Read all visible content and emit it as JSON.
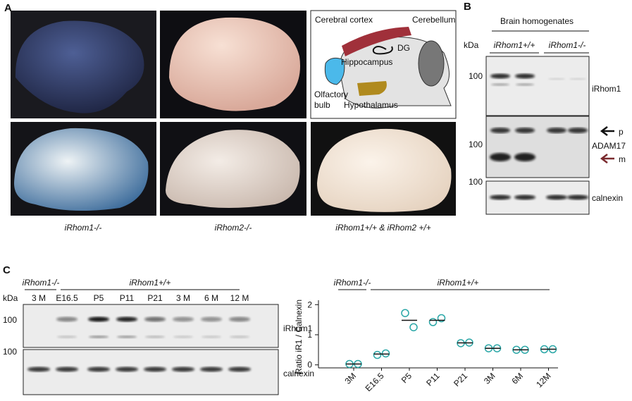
{
  "panel_a": {
    "label": "A",
    "captions": [
      "iRhom1-/-",
      "iRhom2-/-",
      "iRhom1+/+ & iRhom2 +/+"
    ],
    "diagram": {
      "cortex": "Cerebral cortex",
      "cerebellum": "Cerebellum",
      "dg": "DG",
      "hippocampus": "Hippocampus",
      "olfactory": [
        "Olfactory",
        "bulb"
      ],
      "hypothalamus": "Hypothalamus"
    }
  },
  "panel_b": {
    "label": "B",
    "header": "Brain homogenates",
    "kda": "kDa",
    "groups": [
      "iRhom1+/+",
      "iRhom1-/-"
    ],
    "markers": [
      "100",
      "100",
      "100"
    ],
    "blot_labels": {
      "irhom1": "iRhom1",
      "p": "p",
      "adam17": "ADAM17",
      "m": "m",
      "calnexin": "calnexin"
    }
  },
  "panel_c": {
    "label": "C",
    "groups": [
      "iRhom1-/-",
      "iRhom1+/+"
    ],
    "kda": "kDa",
    "lanes": [
      "3 M",
      "E16.5",
      "P5",
      "P11",
      "P21",
      "3 M",
      "6 M",
      "12 M"
    ],
    "markers": [
      "100",
      "100"
    ],
    "blot_labels": [
      "iRhom1",
      "calnexin"
    ]
  },
  "chart_data": {
    "type": "scatter",
    "groups": [
      "iRhom1-/-",
      "iRhom1+/+"
    ],
    "ylabel": "Ratio iR1 / Calnexin",
    "categories": [
      "3M",
      "E16.5",
      "P5",
      "P11",
      "P21",
      "3M",
      "6M",
      "12M"
    ],
    "values": [
      [
        0.03,
        0.03
      ],
      [
        0.33,
        0.38
      ],
      [
        1.72,
        1.25
      ],
      [
        1.42,
        1.55
      ],
      [
        0.72,
        0.74
      ],
      [
        0.55,
        0.55
      ],
      [
        0.5,
        0.5
      ],
      [
        0.52,
        0.52
      ]
    ],
    "means": [
      0.03,
      0.36,
      1.48,
      1.48,
      0.73,
      0.55,
      0.5,
      0.52
    ],
    "color": "#2aa7a7",
    "ylim": [
      -0.1,
      2.1
    ],
    "yticks": [
      0,
      1,
      2
    ]
  }
}
